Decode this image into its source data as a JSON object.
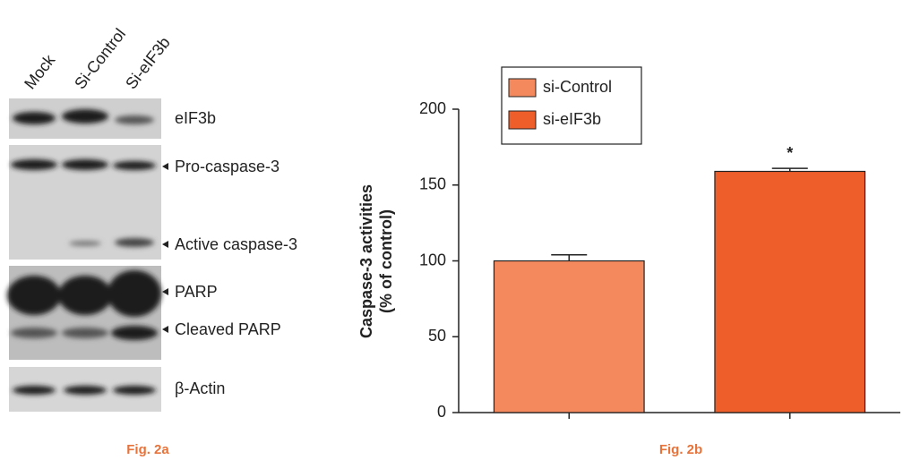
{
  "blot": {
    "lanes": [
      "Mock",
      "Si-Control",
      "Si-eIF3b"
    ],
    "bands": [
      "eIF3b",
      "Pro-caspase-3",
      "Active caspase-3",
      "PARP",
      "Cleaved PARP",
      "β-Actin"
    ],
    "caption": "Fig. 2a"
  },
  "chart_data": {
    "type": "bar",
    "caption": "Fig. 2b",
    "ylabel": [
      "Caspase-3 activities",
      "(% of control)"
    ],
    "categories": [
      null,
      null
    ],
    "series": [
      {
        "name": "si-Control",
        "color": "#f4895e",
        "values": [
          100,
          null
        ],
        "errors": [
          4,
          null
        ]
      },
      {
        "name": "si-eIF3b",
        "color": "#ee5e2a",
        "values": [
          null,
          159
        ],
        "errors": [
          null,
          2
        ]
      }
    ],
    "annotation": "*",
    "ylim": [
      0,
      200
    ],
    "yticks": [
      0,
      50,
      100,
      150,
      200
    ],
    "grid": false,
    "legend": "upper left"
  }
}
